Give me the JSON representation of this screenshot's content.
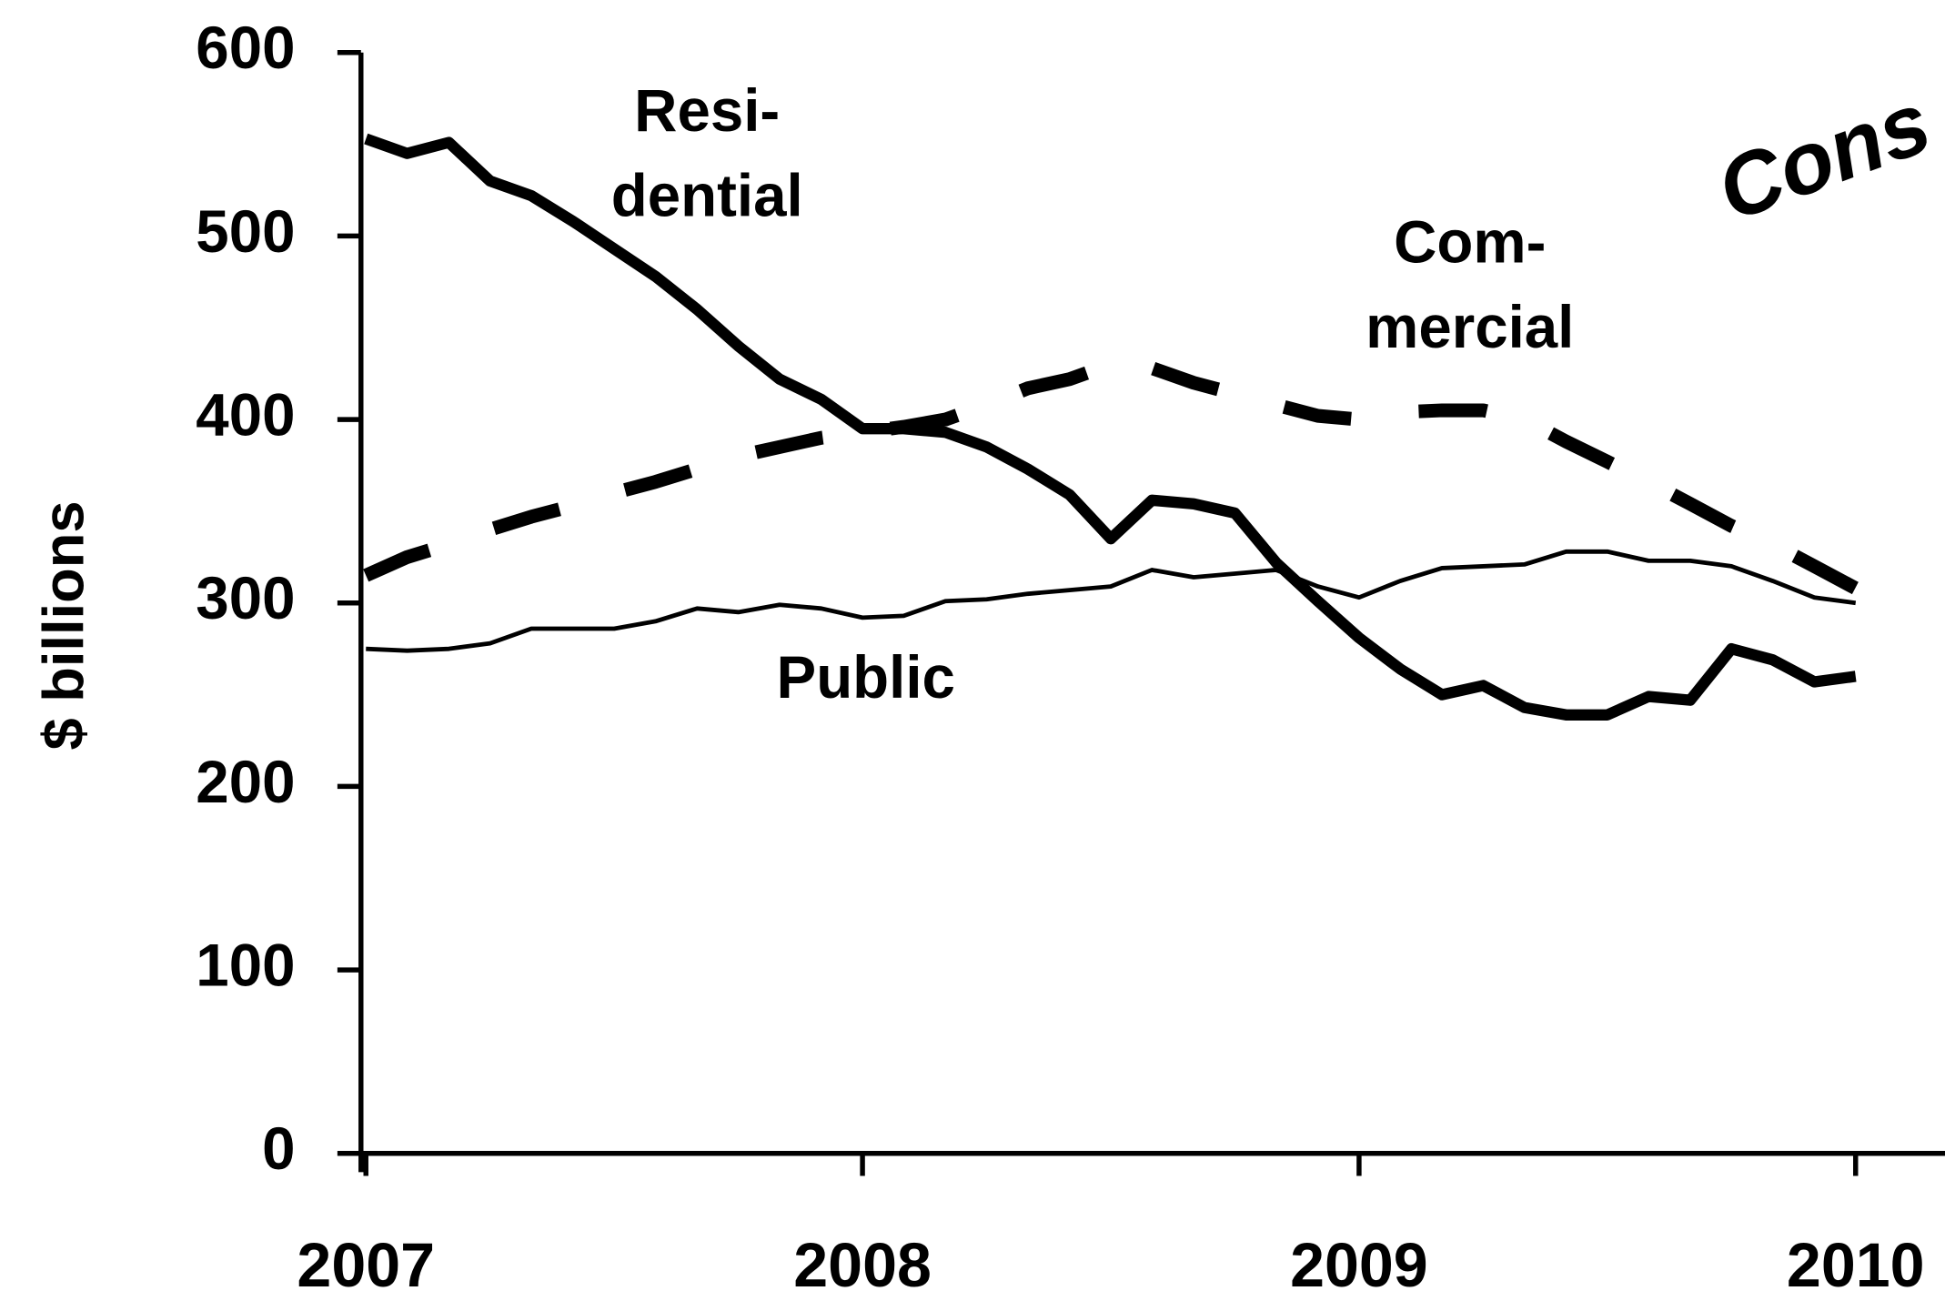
{
  "chart_data": {
    "type": "line",
    "y_label": "$ billions",
    "annotations": [
      "Resi-",
      "dential",
      "Com-",
      "mercial",
      "Public",
      "Cons"
    ],
    "x": [
      2007,
      2007.083,
      2007.167,
      2007.25,
      2007.333,
      2007.417,
      2007.5,
      2007.583,
      2007.667,
      2007.75,
      2007.833,
      2007.917,
      2008,
      2008.083,
      2008.167,
      2008.25,
      2008.333,
      2008.417,
      2008.5,
      2008.583,
      2008.667,
      2008.75,
      2008.833,
      2008.917,
      2009,
      2009.083,
      2009.167,
      2009.25,
      2009.333,
      2009.417,
      2009.5,
      2009.583,
      2009.667,
      2009.75,
      2009.833,
      2009.917,
      2010
    ],
    "series": [
      {
        "name": "Residential",
        "color": "#000000",
        "line_style": "thick",
        "values": [
          553,
          545,
          551,
          530,
          522,
          508,
          493,
          478,
          460,
          440,
          422,
          411,
          395,
          395,
          393,
          385,
          373,
          359,
          335,
          356,
          354,
          349,
          322,
          301,
          281,
          264,
          250,
          255,
          243,
          239,
          239,
          249,
          247,
          275,
          269,
          257,
          260
        ]
      },
      {
        "name": "Commercial",
        "color": "#000000",
        "line_style": "dashed",
        "values": [
          315,
          325,
          332,
          340,
          347,
          353,
          360,
          366,
          373,
          380,
          385,
          390,
          393,
          396,
          400,
          408,
          417,
          422,
          430,
          428,
          420,
          414,
          408,
          402,
          400,
          404,
          405,
          405,
          400,
          388,
          377,
          366,
          354,
          342,
          332,
          320,
          308
        ]
      },
      {
        "name": "Public",
        "color": "#000000",
        "line_style": "thin",
        "values": [
          275,
          274,
          275,
          278,
          286,
          286,
          286,
          290,
          297,
          295,
          299,
          297,
          292,
          293,
          301,
          302,
          305,
          307,
          309,
          318,
          314,
          316,
          318,
          309,
          303,
          312,
          319,
          320,
          321,
          328,
          328,
          323,
          323,
          320,
          312,
          303,
          300
        ]
      }
    ],
    "xlim": [
      2007,
      2010.18
    ],
    "xticks": [
      2007,
      2008,
      2009,
      2010
    ],
    "ylim": [
      0,
      600
    ],
    "yticks": [
      0,
      100,
      200,
      300,
      400,
      500,
      600
    ],
    "grid": false
  }
}
